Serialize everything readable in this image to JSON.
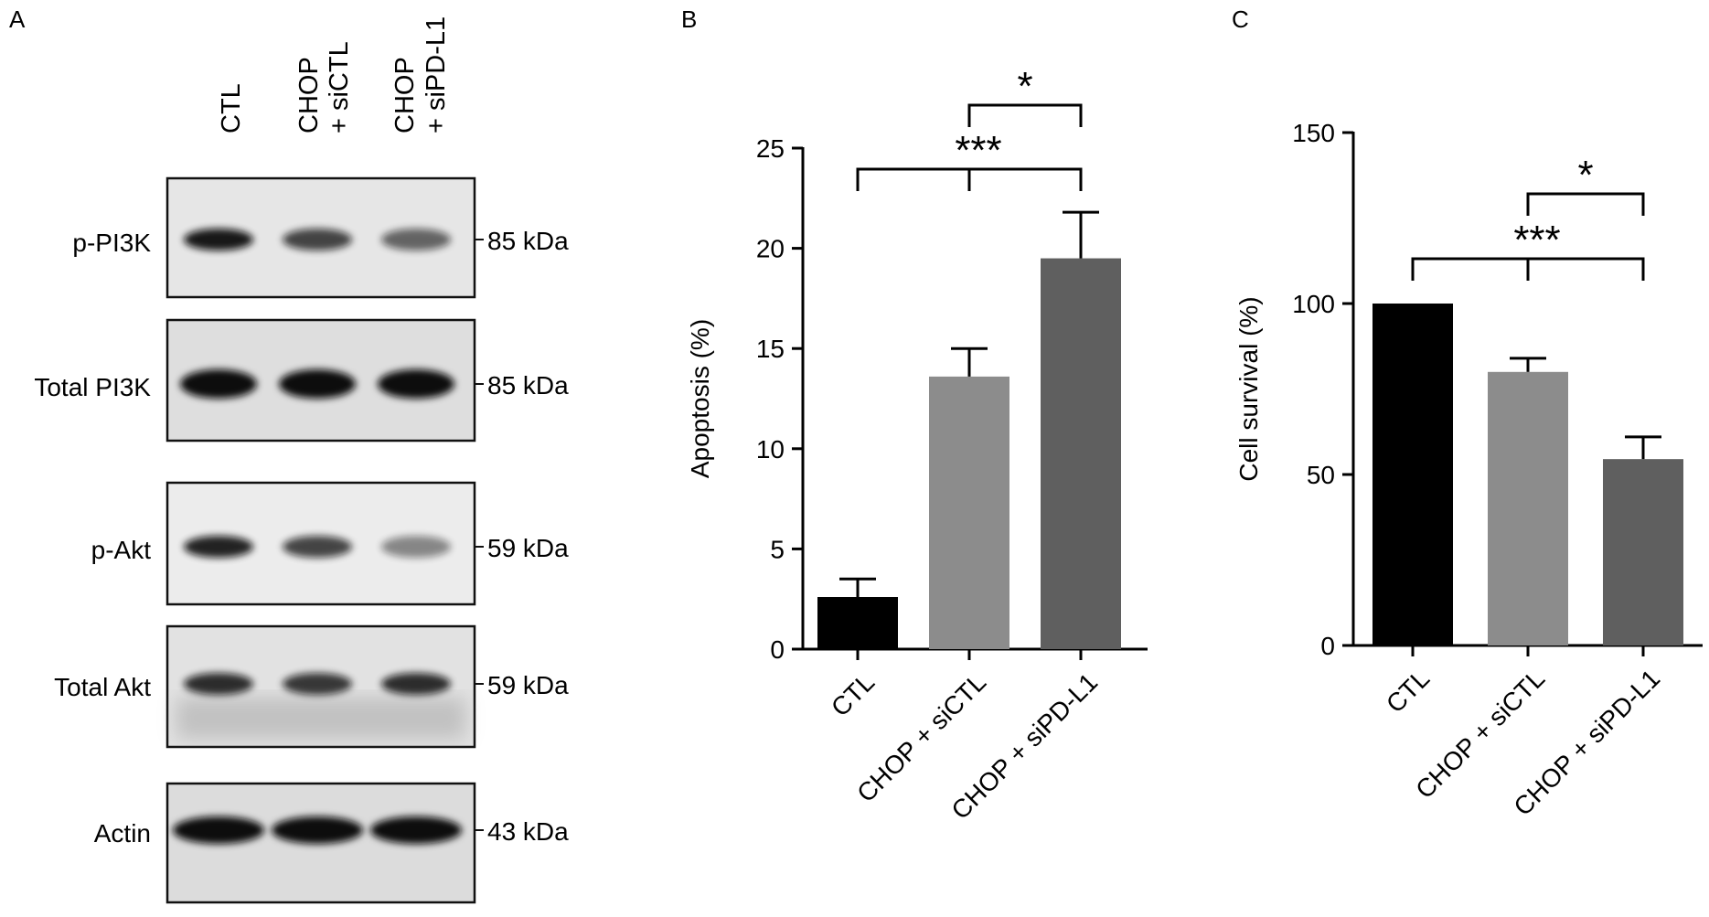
{
  "panel_a": {
    "letter": "A",
    "lanes": [
      {
        "line1": "CTL",
        "line2": ""
      },
      {
        "line1": "CHOP",
        "line2": "+ siCTL"
      },
      {
        "line1": "CHOP",
        "line2": "+ siPD-L1"
      }
    ],
    "blots": [
      {
        "label": "p-PI3K",
        "marker": "85 kDa",
        "intensity": [
          0.95,
          0.75,
          0.6
        ]
      },
      {
        "label": "Total PI3K",
        "marker": "85 kDa",
        "intensity": [
          1.0,
          1.0,
          1.0
        ]
      },
      {
        "label": "p-Akt",
        "marker": "59 kDa",
        "intensity": [
          0.9,
          0.75,
          0.45
        ]
      },
      {
        "label": "Total Akt",
        "marker": "59 kDa",
        "intensity": [
          0.85,
          0.8,
          0.85
        ]
      },
      {
        "label": "Actin",
        "marker": "43 kDa",
        "intensity": [
          1.0,
          1.0,
          1.0
        ]
      }
    ]
  },
  "chart_data": [
    {
      "panel": "B",
      "type": "bar",
      "categories": [
        "CTL",
        "CHOP + siCTL",
        "CHOP + siPD-L1"
      ],
      "values": [
        2.6,
        13.6,
        19.5
      ],
      "errors": [
        0.9,
        1.4,
        2.3
      ],
      "colors": [
        "#000000",
        "#8c8c8c",
        "#5f5f5f"
      ],
      "ylabel": "Apoptosis (%)",
      "ylim": [
        0,
        25
      ],
      "yticks": [
        0,
        5,
        10,
        15,
        20,
        25
      ],
      "significance": [
        {
          "label": "*",
          "from": 1,
          "to": 2
        },
        {
          "label": "***",
          "from": 0,
          "to": [
            1,
            2
          ]
        }
      ]
    },
    {
      "panel": "C",
      "type": "bar",
      "categories": [
        "CTL",
        "CHOP + siCTL",
        "CHOP + siPD-L1"
      ],
      "values": [
        100,
        80,
        54.5
      ],
      "errors": [
        0,
        4,
        6.5
      ],
      "colors": [
        "#000000",
        "#8c8c8c",
        "#5f5f5f"
      ],
      "ylabel": "Cell survival (%)",
      "ylim": [
        0,
        150
      ],
      "yticks": [
        0,
        50,
        100,
        150
      ],
      "significance": [
        {
          "label": "*",
          "from": 1,
          "to": 2
        },
        {
          "label": "***",
          "from": 0,
          "to": [
            1,
            2
          ]
        }
      ]
    }
  ]
}
